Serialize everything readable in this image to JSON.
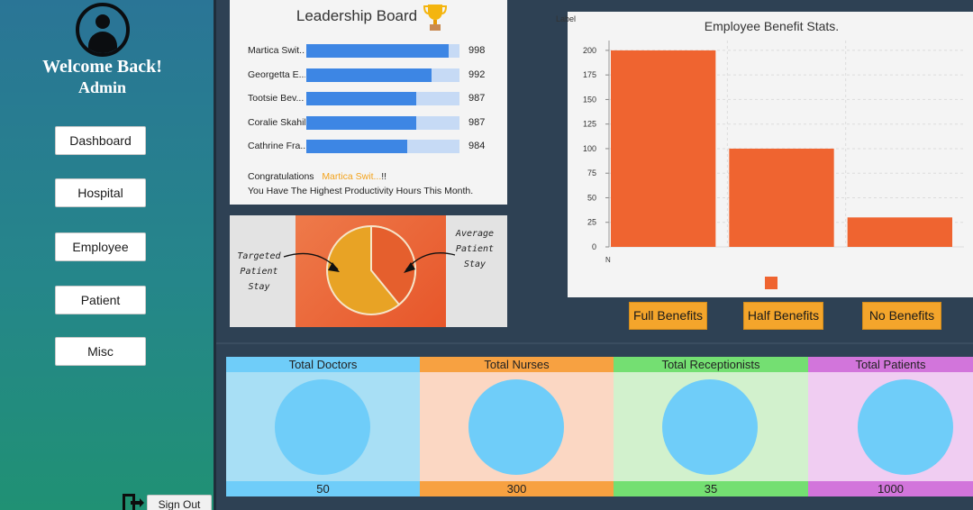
{
  "sidebar": {
    "welcome": "Welcome Back!",
    "role": "Admin",
    "nav": [
      "Dashboard",
      "Hospital",
      "Employee",
      "Patient",
      "Misc"
    ],
    "signout": "Sign Out"
  },
  "leaderboard": {
    "title": "Leadership Board",
    "max_score": 1000,
    "rows": [
      {
        "name": "Martica Swit...",
        "score": 998
      },
      {
        "name": "Georgetta E...",
        "score": 992
      },
      {
        "name": "Tootsie Bev...",
        "score": 987
      },
      {
        "name": "Coralie Skahill",
        "score": 987
      },
      {
        "name": "Cathrine Fra...",
        "score": 984
      }
    ],
    "congrats_prefix": "Congratulations",
    "congrats_name": "Martica Swit...",
    "congrats_suffix": "!!",
    "message": "You Have The Highest Productivity Hours This Month."
  },
  "pie_panel": {
    "left_label": [
      "Targeted",
      "Patient",
      "Stay"
    ],
    "right_label": [
      "Average",
      "Patient",
      "Stay"
    ]
  },
  "chart_data": {
    "type": "bar",
    "title": "Employee Benefit Stats.",
    "corner_label": "Label",
    "categories": [
      "Full Benefits",
      "Half Benefits",
      "No Benefits"
    ],
    "x_tick": "N",
    "values": [
      200,
      100,
      30
    ],
    "ylim": [
      0,
      210
    ],
    "yticks": [
      0,
      25,
      50,
      75,
      100,
      125,
      150,
      175,
      200
    ],
    "color": "#ef6430",
    "grid": true,
    "legend": "bottom"
  },
  "category_buttons": [
    "Full Benefits",
    "Half Benefits",
    "No Benefits"
  ],
  "stats": [
    {
      "label": "Total Doctors",
      "value": "50",
      "head_color": "#6fcdf9",
      "body_color": "#a8dff5"
    },
    {
      "label": "Total Nurses",
      "value": "300",
      "head_color": "#f7a141",
      "body_color": "#fbd7c3"
    },
    {
      "label": "Total Receptionists",
      "value": "35",
      "head_color": "#74df72",
      "body_color": "#d2f1cd"
    },
    {
      "label": "Total Patients",
      "value": "1000",
      "head_color": "#d275db",
      "body_color": "#f0cdf2"
    }
  ]
}
